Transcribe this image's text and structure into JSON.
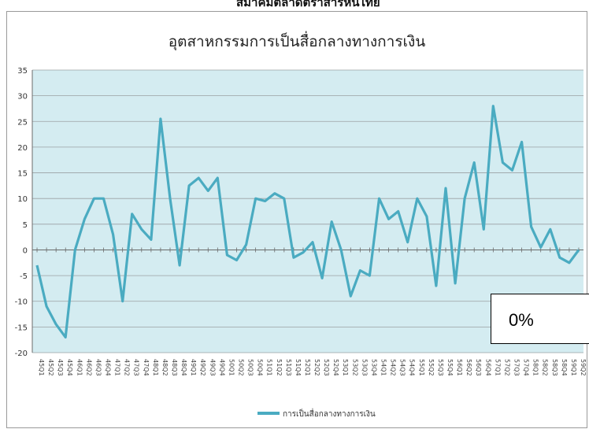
{
  "header": {
    "clipped_text": "สมาคมตลาดตราสารหนี้ไทย"
  },
  "overlay": {
    "label": "0%"
  },
  "colors": {
    "plot_bg": "#d4ecf1",
    "series": "#4aabc1",
    "grid": "#9aa0a3",
    "axis": "#6b6b6b"
  },
  "chart_data": {
    "type": "line",
    "title": "อุตสาหกรรมการเป็นสื่อกลางทางการเงิน",
    "xlabel": "",
    "ylabel": "",
    "ylim": [
      -20,
      35
    ],
    "yticks": [
      35,
      30,
      25,
      20,
      15,
      10,
      5,
      0,
      -5,
      -10,
      -15,
      -20
    ],
    "grid": true,
    "legend": "bottom-left",
    "categories": [
      "45Q1",
      "45Q2",
      "45Q3",
      "45Q4",
      "46Q1",
      "46Q2",
      "46Q3",
      "46Q4",
      "47Q1",
      "47Q2",
      "47Q3",
      "47Q4",
      "48Q1",
      "48Q2",
      "48Q3",
      "48Q4",
      "49Q1",
      "49Q2",
      "49Q3",
      "49Q4",
      "50Q1",
      "50Q2",
      "50Q3",
      "50Q4",
      "51Q1",
      "51Q2",
      "51Q3",
      "51Q4",
      "52Q1",
      "52Q2",
      "52Q3",
      "52Q4",
      "53Q1",
      "53Q2",
      "53Q3",
      "53Q4",
      "54Q1",
      "54Q2",
      "54Q3",
      "54Q4",
      "55Q1",
      "55Q2",
      "55Q3",
      "55Q4",
      "56Q1",
      "56Q2",
      "56Q3",
      "56Q4",
      "57Q1",
      "57Q2",
      "57Q3",
      "57Q4",
      "58Q1",
      "58Q2",
      "58Q3",
      "58Q4",
      "59Q1",
      "59Q2"
    ],
    "series": [
      {
        "name": "การเป็นสื่อกลางทางการเงิน",
        "values": [
          -3,
          -11,
          -14.5,
          -17,
          0,
          6,
          10,
          10,
          3,
          -10,
          7,
          4,
          2,
          25.5,
          10,
          -3,
          12.5,
          14,
          11.5,
          14,
          -1,
          -2,
          1,
          10,
          9.5,
          11,
          10,
          -1.5,
          -0.5,
          1.5,
          -5.5,
          5.5,
          0,
          -9,
          -4,
          -5,
          10,
          6,
          7.5,
          1.5,
          10,
          6.5,
          -7,
          12,
          -6.5,
          10,
          17,
          4,
          28,
          17,
          15.5,
          21,
          4.5,
          0.5,
          4,
          -1.5,
          -2.5,
          0
        ]
      }
    ]
  }
}
